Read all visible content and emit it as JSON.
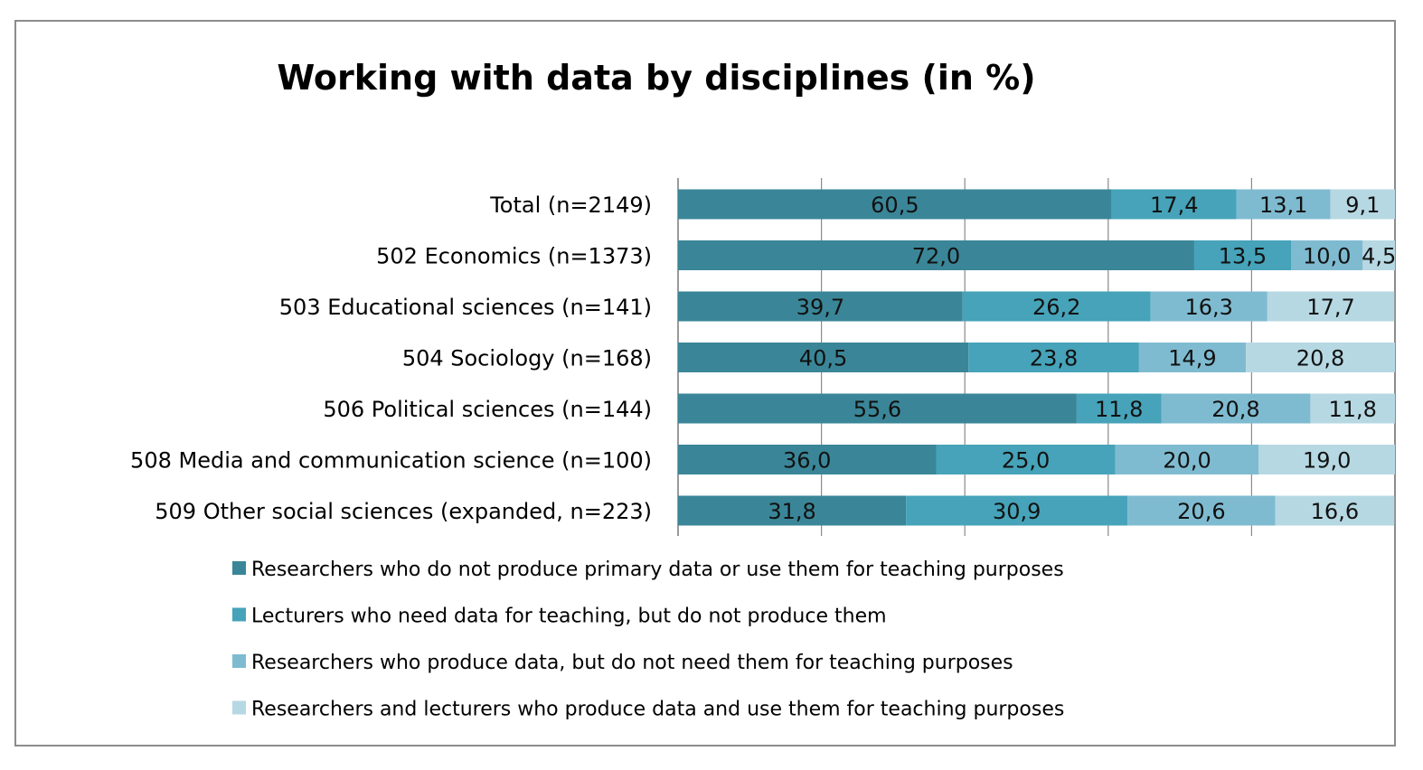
{
  "chart_data": {
    "type": "bar",
    "orientation": "horizontal",
    "stacked": true,
    "title": "Working with data by disciplines (in %)",
    "categories": [
      "Total (n=2149)",
      "502 Economics (n=1373)",
      "503 Educational sciences (n=141)",
      "504 Sociology (n=168)",
      "506 Political sciences (n=144)",
      "508 Media and communication science (n=100)",
      "509 Other social sciences (expanded, n=223)"
    ],
    "series": [
      {
        "name": "Researchers who do not produce primary data or use them for teaching purposes",
        "color": "#3a8698",
        "values": [
          60.5,
          72.0,
          39.7,
          40.5,
          55.6,
          36.0,
          31.8
        ],
        "labels": [
          "60,5",
          "72,0",
          "39,7",
          "40,5",
          "55,6",
          "36,0",
          "31,8"
        ]
      },
      {
        "name": "Lecturers who need data for teaching, but do not produce them",
        "color": "#46a3b9",
        "values": [
          17.4,
          13.5,
          26.2,
          23.8,
          11.8,
          25.0,
          30.9
        ],
        "labels": [
          "17,4",
          "13,5",
          "26,2",
          "23,8",
          "11,8",
          "25,0",
          "30,9"
        ]
      },
      {
        "name": "Researchers who produce data, but do not need them for teaching purposes",
        "color": "#7fbbd0",
        "values": [
          13.1,
          10.0,
          16.3,
          14.9,
          20.8,
          20.0,
          20.6
        ],
        "labels": [
          "13,1",
          "10,0",
          "16,3",
          "14,9",
          "20,8",
          "20,0",
          "20,6"
        ]
      },
      {
        "name": "Researchers and lecturers who produce data and use them for teaching purposes",
        "color": "#b6d8e3",
        "values": [
          9.1,
          4.5,
          17.7,
          20.8,
          11.8,
          19.0,
          16.6
        ],
        "labels": [
          "9,1",
          "4,5",
          "17,7",
          "20,8",
          "11,8",
          "19,0",
          "16,6"
        ]
      }
    ],
    "xlim": [
      0,
      100
    ],
    "grid": true,
    "legend_position": "bottom"
  }
}
